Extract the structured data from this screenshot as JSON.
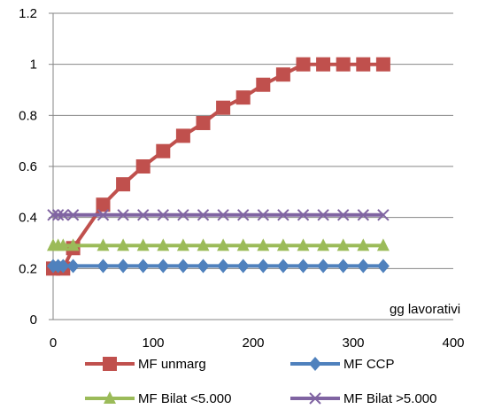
{
  "chart_data": {
    "type": "line",
    "title": "",
    "xlabel": "gg lavorativi",
    "ylabel": "",
    "xlim": [
      0,
      400
    ],
    "ylim": [
      0,
      1.2
    ],
    "xticks": [
      "0",
      "100",
      "200",
      "300",
      "400"
    ],
    "yticks": [
      "0",
      "0.2",
      "0.4",
      "0.6",
      "0.8",
      "1",
      "1.2"
    ],
    "grid": "horizontal",
    "legend_position": "bottom",
    "series": [
      {
        "name": "MF unmarg",
        "color": "#c0504d",
        "marker": "square",
        "x": [
          0,
          10,
          20,
          50,
          70,
          90,
          110,
          130,
          150,
          170,
          190,
          210,
          230,
          250,
          270,
          290,
          310,
          330
        ],
        "y": [
          0.2,
          0.2,
          0.28,
          0.45,
          0.53,
          0.6,
          0.66,
          0.72,
          0.77,
          0.83,
          0.87,
          0.92,
          0.96,
          1.0,
          1.0,
          1.0,
          1.0,
          1.0
        ]
      },
      {
        "name": "MF CCP",
        "color": "#4f81bd",
        "marker": "diamond",
        "x": [
          0,
          5,
          10,
          20,
          50,
          70,
          90,
          110,
          130,
          150,
          170,
          190,
          210,
          230,
          250,
          270,
          290,
          310,
          330
        ],
        "y": [
          0.21,
          0.21,
          0.21,
          0.21,
          0.21,
          0.21,
          0.21,
          0.21,
          0.21,
          0.21,
          0.21,
          0.21,
          0.21,
          0.21,
          0.21,
          0.21,
          0.21,
          0.21,
          0.21
        ]
      },
      {
        "name": "MF Bilat <5.000",
        "color": "#9bbb59",
        "marker": "triangle",
        "x": [
          0,
          5,
          10,
          20,
          50,
          70,
          90,
          110,
          130,
          150,
          170,
          190,
          210,
          230,
          250,
          270,
          290,
          310,
          330
        ],
        "y": [
          0.29,
          0.29,
          0.29,
          0.29,
          0.29,
          0.29,
          0.29,
          0.29,
          0.29,
          0.29,
          0.29,
          0.29,
          0.29,
          0.29,
          0.29,
          0.29,
          0.29,
          0.29,
          0.29
        ]
      },
      {
        "name": "MF Bilat >5.000",
        "color": "#8064a2",
        "marker": "x",
        "x": [
          0,
          5,
          10,
          20,
          50,
          70,
          90,
          110,
          130,
          150,
          170,
          190,
          210,
          230,
          250,
          270,
          290,
          310,
          330
        ],
        "y": [
          0.41,
          0.41,
          0.41,
          0.41,
          0.41,
          0.41,
          0.41,
          0.41,
          0.41,
          0.41,
          0.41,
          0.41,
          0.41,
          0.41,
          0.41,
          0.41,
          0.41,
          0.41,
          0.41
        ]
      }
    ]
  }
}
